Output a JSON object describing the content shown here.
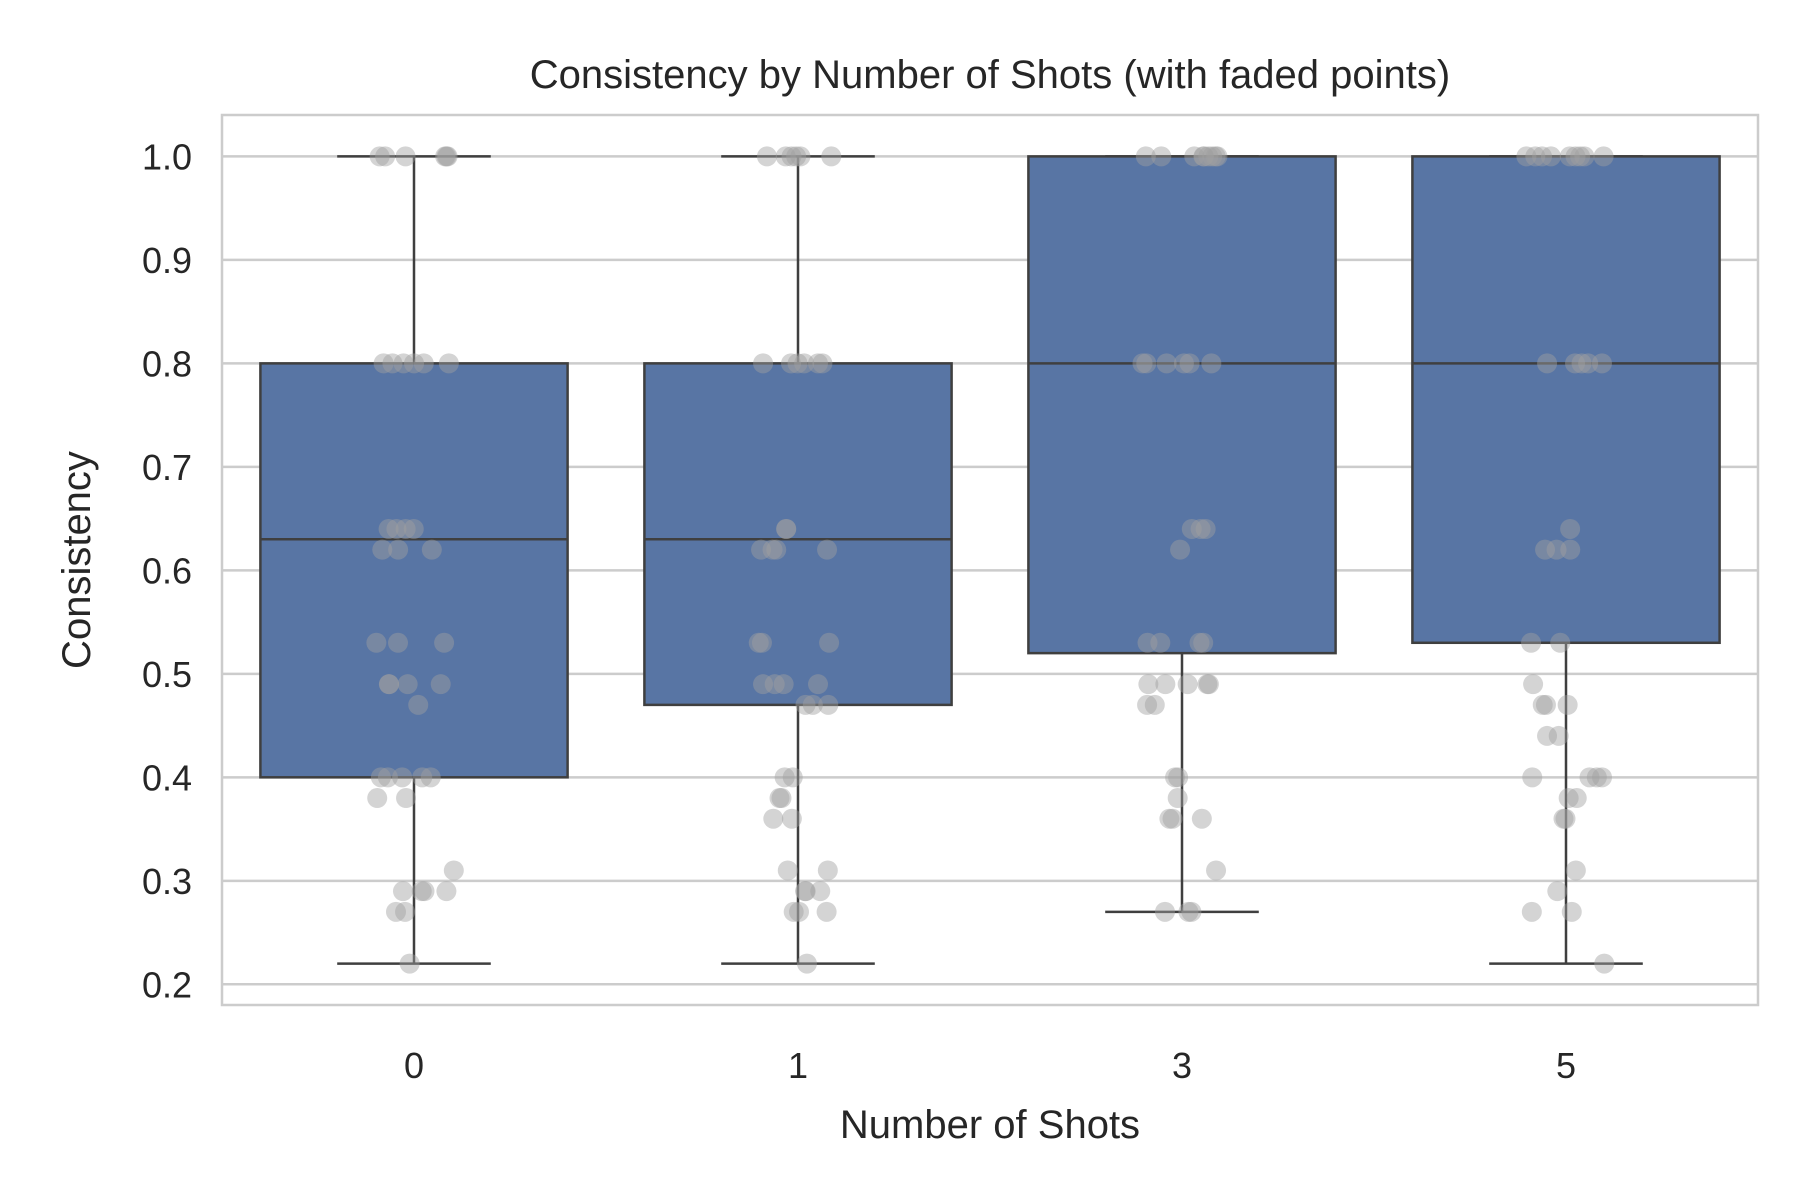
{
  "chart_data": {
    "type": "box",
    "title": "Consistency by Number of Shots (with faded points)",
    "xlabel": "Number of Shots",
    "ylabel": "Consistency",
    "ylim": [
      0.18,
      1.04
    ],
    "yticks": [
      "0.2",
      "0.3",
      "0.4",
      "0.5",
      "0.6",
      "0.7",
      "0.8",
      "0.9",
      "1.0"
    ],
    "grid": true,
    "colors": {
      "box": "#5875a4",
      "line": "#3f3f3f",
      "point": "#a0a0a0",
      "grid": "#cccccc",
      "frame": "#cccccc"
    },
    "categories": [
      "0",
      "1",
      "3",
      "5"
    ],
    "boxes": [
      {
        "category": "0",
        "whisker_low": 0.22,
        "q1": 0.4,
        "median": 0.63,
        "q3": 0.8,
        "whisker_high": 1.0,
        "points": [
          1.0,
          1.0,
          1.0,
          1.0,
          1.0,
          1.0,
          0.8,
          0.8,
          0.8,
          0.8,
          0.8,
          0.8,
          0.64,
          0.64,
          0.64,
          0.64,
          0.62,
          0.62,
          0.62,
          0.53,
          0.53,
          0.53,
          0.49,
          0.49,
          0.49,
          0.49,
          0.47,
          0.4,
          0.4,
          0.4,
          0.4,
          0.4,
          0.38,
          0.38,
          0.31,
          0.29,
          0.29,
          0.29,
          0.29,
          0.27,
          0.27,
          0.22
        ]
      },
      {
        "category": "1",
        "whisker_low": 0.22,
        "q1": 0.47,
        "median": 0.63,
        "q3": 0.8,
        "whisker_high": 1.0,
        "points": [
          1.0,
          1.0,
          1.0,
          1.0,
          1.0,
          1.0,
          0.8,
          0.8,
          0.8,
          0.8,
          0.8,
          0.8,
          0.64,
          0.64,
          0.62,
          0.62,
          0.62,
          0.62,
          0.53,
          0.53,
          0.53,
          0.49,
          0.49,
          0.49,
          0.49,
          0.47,
          0.47,
          0.47,
          0.4,
          0.4,
          0.38,
          0.38,
          0.36,
          0.36,
          0.31,
          0.31,
          0.29,
          0.29,
          0.29,
          0.27,
          0.27,
          0.27,
          0.22
        ]
      },
      {
        "category": "3",
        "whisker_low": 0.27,
        "q1": 0.52,
        "median": 0.8,
        "q3": 1.0,
        "whisker_high": 1.0,
        "points": [
          1.0,
          1.0,
          1.0,
          1.0,
          1.0,
          1.0,
          1.0,
          1.0,
          1.0,
          0.8,
          0.8,
          0.8,
          0.8,
          0.8,
          0.8,
          0.64,
          0.64,
          0.64,
          0.62,
          0.53,
          0.53,
          0.53,
          0.53,
          0.49,
          0.49,
          0.49,
          0.49,
          0.49,
          0.47,
          0.47,
          0.4,
          0.4,
          0.38,
          0.36,
          0.36,
          0.36,
          0.31,
          0.27,
          0.27,
          0.27
        ]
      },
      {
        "category": "5",
        "whisker_low": 0.22,
        "q1": 0.53,
        "median": 0.8,
        "q3": 1.0,
        "whisker_high": 1.0,
        "points": [
          1.0,
          1.0,
          1.0,
          1.0,
          1.0,
          1.0,
          1.0,
          1.0,
          1.0,
          0.8,
          0.8,
          0.8,
          0.8,
          0.8,
          0.64,
          0.62,
          0.62,
          0.62,
          0.53,
          0.53,
          0.49,
          0.47,
          0.47,
          0.47,
          0.44,
          0.44,
          0.4,
          0.4,
          0.4,
          0.4,
          0.38,
          0.38,
          0.36,
          0.36,
          0.31,
          0.29,
          0.27,
          0.27,
          0.22
        ]
      }
    ]
  }
}
